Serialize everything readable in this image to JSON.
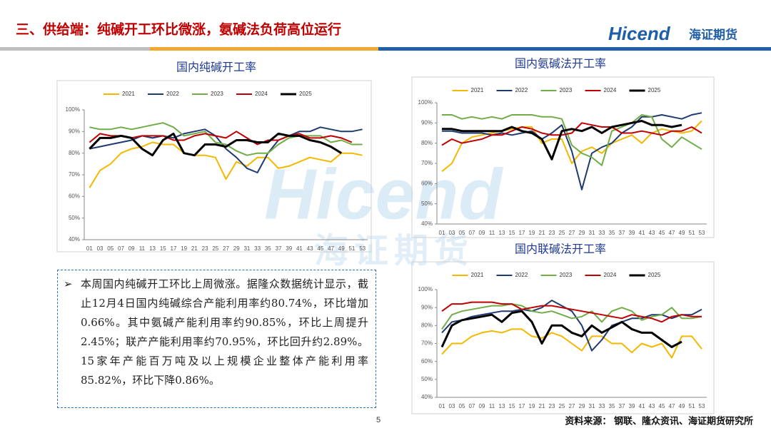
{
  "header": {
    "title": "三、供给端：纯碱开工环比微涨，氨碱法负荷高位运行"
  },
  "logo": {
    "text": "Hicend",
    "cn": "海证期货"
  },
  "text_box": {
    "bullet": "➢",
    "text": "本周国内纯碱开工环比上周微涨。据隆众数据统计显示，截止12月4日国内纯碱综合产能利用率约80.74%，环比增加0.66%。其中氨碱产能利用率约90.85%，环比上周提升2.45%；联产产能利用率约70.95%，环比回升约2.89%。15家年产能百万吨及以上规模企业整体产能利用率85.82%，环比下降0.86%。"
  },
  "page_number": "5",
  "source": "资料来源：  钢联、隆众资讯、海证期货研究所",
  "chart_data": [
    {
      "type": "line",
      "title": "国内纯碱开工率",
      "legend": "top",
      "grid": false,
      "categories": [
        "01",
        "03",
        "05",
        "07",
        "09",
        "11",
        "13",
        "15",
        "17",
        "19",
        "21",
        "23",
        "25",
        "27",
        "29",
        "31",
        "33",
        "35",
        "37",
        "39",
        "41",
        "43",
        "45",
        "47",
        "49",
        "51",
        "53"
      ],
      "ylim": [
        40,
        100
      ],
      "yticks": [
        {
          "value": 40,
          "label": "40%"
        },
        {
          "value": 50,
          "label": "50%"
        },
        {
          "value": 60,
          "label": "60%"
        },
        {
          "value": 70,
          "label": "70%"
        },
        {
          "value": 80,
          "label": "80%"
        },
        {
          "value": 90,
          "label": "90%"
        },
        {
          "value": 100,
          "label": "100%"
        }
      ],
      "series": [
        {
          "name": "2021",
          "color": "#f5b800",
          "values": [
            64,
            72,
            75,
            80,
            82,
            83,
            85,
            84,
            84,
            80,
            79,
            79,
            78,
            68,
            76,
            74,
            78,
            78,
            73,
            74,
            76,
            78,
            77,
            76,
            80,
            80,
            79
          ]
        },
        {
          "name": "2022",
          "color": "#1f3a70",
          "values": [
            82,
            83,
            84,
            85,
            86,
            88,
            87,
            88,
            87,
            89,
            90,
            91,
            88,
            82,
            78,
            73,
            71,
            80,
            86,
            88,
            90,
            90,
            92,
            91,
            90,
            90,
            91
          ]
        },
        {
          "name": "2023",
          "color": "#70ad47",
          "values": [
            92,
            91,
            91,
            92,
            91,
            92,
            93,
            94,
            92,
            88,
            89,
            90,
            85,
            84,
            81,
            79,
            80,
            80,
            84,
            87,
            88,
            88,
            88,
            85,
            86,
            84,
            84
          ]
        },
        {
          "name": "2024",
          "color": "#c00000",
          "values": [
            85,
            89,
            88,
            88,
            87,
            88,
            88,
            88,
            86,
            86,
            88,
            89,
            88,
            87,
            90,
            87,
            84,
            86,
            86,
            88,
            89,
            87,
            87,
            88,
            87,
            85,
            null
          ]
        },
        {
          "name": "2025",
          "color": "#000000",
          "values": [
            82,
            87,
            87,
            88,
            87,
            82,
            79,
            86,
            89,
            80,
            79,
            84,
            84,
            83,
            86,
            86,
            85,
            85,
            89,
            88,
            88,
            86,
            85,
            83,
            80,
            null,
            null
          ]
        }
      ]
    },
    {
      "type": "line",
      "title": "国内氨碱法开工率",
      "legend": "top",
      "grid": false,
      "categories": [
        "01",
        "03",
        "05",
        "07",
        "09",
        "11",
        "13",
        "15",
        "17",
        "19",
        "21",
        "23",
        "25",
        "27",
        "29",
        "31",
        "33",
        "35",
        "37",
        "39",
        "41",
        "43",
        "45",
        "47",
        "49",
        "51",
        "53"
      ],
      "ylim": [
        40,
        100
      ],
      "yticks": [
        {
          "value": 40,
          "label": "40%"
        },
        {
          "value": 50,
          "label": "50%"
        },
        {
          "value": 60,
          "label": "60%"
        },
        {
          "value": 70,
          "label": "70%"
        },
        {
          "value": 80,
          "label": "80%"
        },
        {
          "value": 90,
          "label": "90%"
        },
        {
          "value": 100,
          "label": "100%"
        }
      ],
      "series": [
        {
          "name": "2021",
          "color": "#f5b800",
          "values": [
            66,
            70,
            80,
            83,
            84,
            85,
            86,
            87,
            88,
            88,
            80,
            82,
            82,
            70,
            76,
            78,
            75,
            80,
            82,
            84,
            80,
            85,
            87,
            86,
            85,
            86,
            91
          ]
        },
        {
          "name": "2022",
          "color": "#1f3a70",
          "values": [
            86,
            86,
            85,
            85,
            85,
            84,
            85,
            84,
            85,
            86,
            82,
            85,
            89,
            76,
            57,
            75,
            78,
            80,
            85,
            88,
            93,
            93,
            94,
            93,
            92,
            94,
            95
          ]
        },
        {
          "name": "2023",
          "color": "#70ad47",
          "values": [
            94,
            94,
            92,
            93,
            92,
            93,
            92,
            94,
            94,
            94,
            93,
            93,
            92,
            79,
            75,
            73,
            69,
            86,
            88,
            90,
            94,
            93,
            82,
            78,
            83,
            80,
            77
          ]
        },
        {
          "name": "2024",
          "color": "#c00000",
          "values": [
            79,
            82,
            80,
            81,
            82,
            84,
            84,
            86,
            88,
            87,
            85,
            84,
            84,
            85,
            90,
            89,
            88,
            88,
            85,
            85,
            86,
            85,
            84,
            86,
            86,
            88,
            85
          ]
        },
        {
          "name": "2025",
          "color": "#000000",
          "values": [
            87,
            87,
            86,
            86,
            86,
            86,
            86,
            88,
            86,
            85,
            82,
            72,
            86,
            87,
            86,
            88,
            85,
            88,
            89,
            90,
            91,
            89,
            89,
            88,
            89,
            null,
            null
          ]
        }
      ]
    },
    {
      "type": "line",
      "title": "国内联碱法开工率",
      "legend": "top",
      "grid": false,
      "categories": [
        "01",
        "03",
        "05",
        "07",
        "09",
        "11",
        "13",
        "15",
        "17",
        "19",
        "21",
        "23",
        "25",
        "27",
        "29",
        "31",
        "33",
        "35",
        "37",
        "39",
        "41",
        "43",
        "45",
        "47",
        "49",
        "51",
        "53"
      ],
      "ylim": [
        40,
        100
      ],
      "yticks": [
        {
          "value": 40,
          "label": "40%"
        },
        {
          "value": 50,
          "label": "50%"
        },
        {
          "value": 60,
          "label": "60%"
        },
        {
          "value": 70,
          "label": "70%"
        },
        {
          "value": 80,
          "label": "80%"
        },
        {
          "value": 90,
          "label": "90%"
        },
        {
          "value": 100,
          "label": "100%"
        }
      ],
      "series": [
        {
          "name": "2021",
          "color": "#f5b800",
          "values": [
            64,
            70,
            70,
            74,
            76,
            77,
            76,
            78,
            78,
            74,
            73,
            76,
            74,
            70,
            66,
            74,
            74,
            70,
            70,
            65,
            70,
            68,
            70,
            62,
            74,
            74,
            67
          ]
        },
        {
          "name": "2022",
          "color": "#1f3a70",
          "values": [
            76,
            82,
            83,
            85,
            86,
            87,
            88,
            88,
            89,
            88,
            90,
            94,
            91,
            88,
            80,
            66,
            72,
            80,
            82,
            84,
            84,
            86,
            86,
            84,
            86,
            86,
            89
          ]
        },
        {
          "name": "2023",
          "color": "#70ad47",
          "values": [
            78,
            86,
            88,
            89,
            90,
            91,
            91,
            92,
            91,
            88,
            87,
            88,
            86,
            84,
            85,
            88,
            82,
            88,
            90,
            88,
            83,
            85,
            86,
            90,
            84,
            84,
            85
          ]
        },
        {
          "name": "2024",
          "color": "#c00000",
          "values": [
            88,
            92,
            92,
            93,
            93,
            93,
            92,
            92,
            89,
            90,
            91,
            91,
            90,
            89,
            88,
            87,
            86,
            85,
            84,
            86,
            85,
            84,
            82,
            85,
            86,
            85,
            85
          ]
        },
        {
          "name": "2025",
          "color": "#000000",
          "values": [
            68,
            80,
            83,
            84,
            85,
            86,
            82,
            87,
            88,
            82,
            70,
            80,
            80,
            76,
            74,
            80,
            76,
            79,
            82,
            78,
            76,
            76,
            72,
            68,
            71,
            null,
            null
          ]
        }
      ]
    }
  ]
}
